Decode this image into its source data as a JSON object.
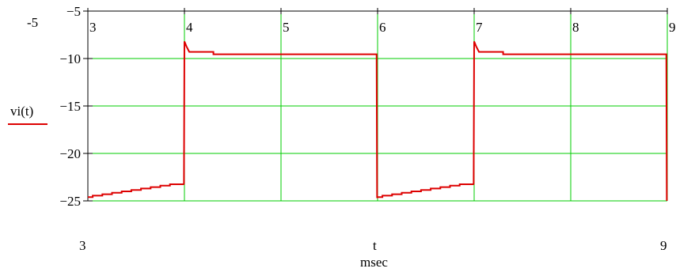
{
  "chart_data": {
    "type": "line",
    "ylabel": "vi(t)",
    "xlabel": "t",
    "xunit": "msec",
    "xlim": [
      3,
      9
    ],
    "ylim": [
      -25,
      -5
    ],
    "xmin_label": "3",
    "xmax_label": "9",
    "ymin_outer_label": "-5",
    "x_ticks": [
      3,
      4,
      5,
      6,
      7,
      8,
      9
    ],
    "x_tick_labels": [
      "3",
      "4",
      "5",
      "6",
      "7",
      "8",
      "9"
    ],
    "y_ticks": [
      -5,
      -10,
      -15,
      -20,
      -25
    ],
    "y_tick_labels": [
      "−5",
      "−10",
      "−15",
      "−20",
      "−25"
    ],
    "grid": true,
    "colors": {
      "series": "#dd0000",
      "grid": "#00cc00",
      "axis": "#000000"
    },
    "series": [
      {
        "name": "vi(t)",
        "x": [
          3.0,
          3.05,
          3.05,
          3.15,
          3.15,
          3.25,
          3.25,
          3.35,
          3.35,
          3.45,
          3.45,
          3.55,
          3.55,
          3.65,
          3.65,
          3.75,
          3.75,
          3.85,
          3.85,
          3.99,
          3.995,
          4.0,
          4.02,
          4.05,
          4.3,
          4.3,
          5.0,
          5.99,
          5.995,
          6.0,
          6.05,
          6.05,
          6.15,
          6.15,
          6.25,
          6.25,
          6.35,
          6.35,
          6.45,
          6.45,
          6.55,
          6.55,
          6.65,
          6.65,
          6.75,
          6.75,
          6.85,
          6.85,
          6.99,
          6.995,
          7.0,
          7.02,
          7.05,
          7.3,
          7.3,
          8.0,
          8.99,
          8.995
        ],
        "y": [
          -24.6,
          -24.6,
          -24.45,
          -24.45,
          -24.3,
          -24.3,
          -24.15,
          -24.15,
          -24.0,
          -24.0,
          -23.85,
          -23.85,
          -23.7,
          -23.7,
          -23.55,
          -23.55,
          -23.4,
          -23.4,
          -23.25,
          -23.25,
          -23.2,
          -8.2,
          -8.7,
          -9.3,
          -9.3,
          -9.55,
          -9.55,
          -9.55,
          -24.7,
          -24.6,
          -24.6,
          -24.45,
          -24.45,
          -24.3,
          -24.3,
          -24.15,
          -24.15,
          -24.0,
          -24.0,
          -23.85,
          -23.85,
          -23.7,
          -23.7,
          -23.55,
          -23.55,
          -23.4,
          -23.4,
          -23.25,
          -23.25,
          -23.2,
          -8.2,
          -8.7,
          -9.3,
          -9.3,
          -9.55,
          -9.55,
          -9.55,
          -25.0
        ]
      }
    ]
  }
}
